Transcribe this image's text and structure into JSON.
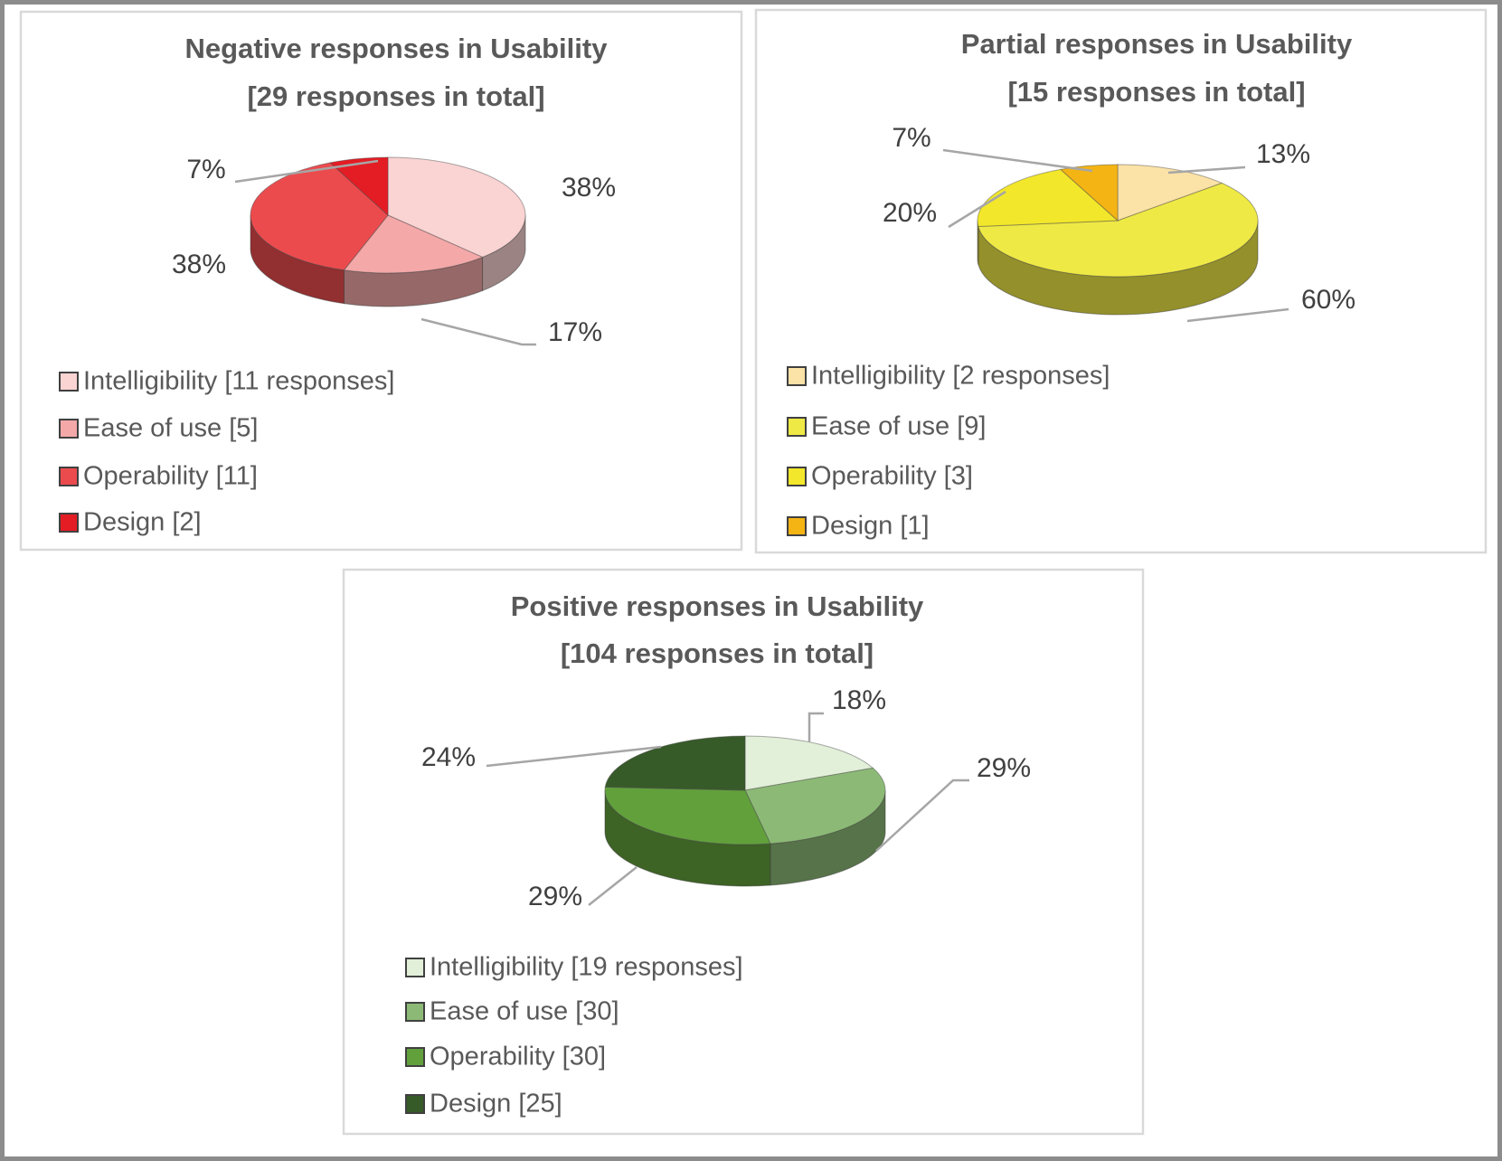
{
  "chart_data": [
    {
      "type": "pie",
      "title": [
        "Negative responses in Usability",
        "[29 responses in total]"
      ],
      "categories": [
        "Intelligibility",
        "Ease of use",
        "Operability",
        "Design"
      ],
      "values": [
        11,
        5,
        11,
        2
      ],
      "percent_labels": [
        "38%",
        "17%",
        "38%",
        "7%"
      ],
      "legend": [
        "Intelligibility [11 responses]",
        "Ease of use [5]",
        "Operability [11]",
        "Design [2]"
      ],
      "colors": [
        "#FAD3D3",
        "#F4A8A8",
        "#EC4B4E",
        "#E41C24"
      ],
      "legend_placement": "bottom-left"
    },
    {
      "type": "pie",
      "title": [
        "Partial responses in Usability",
        "[15 responses in total]"
      ],
      "categories": [
        "Intelligibility",
        "Ease of use",
        "Operability",
        "Design"
      ],
      "values": [
        2,
        9,
        3,
        1
      ],
      "percent_labels": [
        "13%",
        "60%",
        "20%",
        "7%"
      ],
      "legend": [
        "Intelligibility [2 responses]",
        "Ease of use [9]",
        "Operability [3]",
        "Design [1]"
      ],
      "colors": [
        "#FBE2A6",
        "#EFE945",
        "#F2E72A",
        "#F4B414"
      ],
      "legend_placement": "bottom-left"
    },
    {
      "type": "pie",
      "title": [
        "Positive responses in Usability",
        "[104 responses in total]"
      ],
      "categories": [
        "Intelligibility",
        "Ease of use",
        "Operability",
        "Design"
      ],
      "values": [
        19,
        30,
        30,
        25
      ],
      "percent_labels": [
        "18%",
        "29%",
        "29%",
        "24%"
      ],
      "legend": [
        "Intelligibility [19 responses]",
        "Ease of use [30]",
        "Operability [30]",
        "Design [25]"
      ],
      "colors": [
        "#E2EFD9",
        "#8CBA76",
        "#62A03C",
        "#375A29"
      ],
      "legend_placement": "bottom-left"
    }
  ]
}
